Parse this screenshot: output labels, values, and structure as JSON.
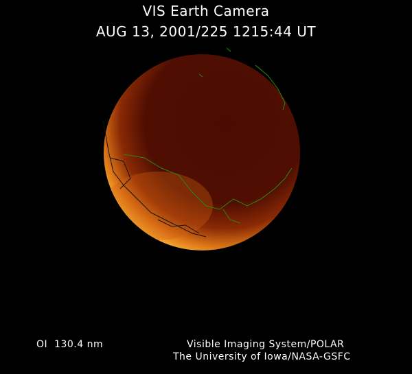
{
  "header": {
    "title": "VIS Earth Camera",
    "timestamp": "AUG 13, 2001/225 1215:44 UT"
  },
  "footer": {
    "wavelength": "OI  130.4 nm",
    "credit_line1": "Visible Imaging System/POLAR",
    "credit_line2": "The University of Iowa/NASA-GSFC"
  },
  "image": {
    "disk_color": "#4a0c02",
    "aurora_color": "#ffb030",
    "coastline_color": "#2a8a10"
  }
}
